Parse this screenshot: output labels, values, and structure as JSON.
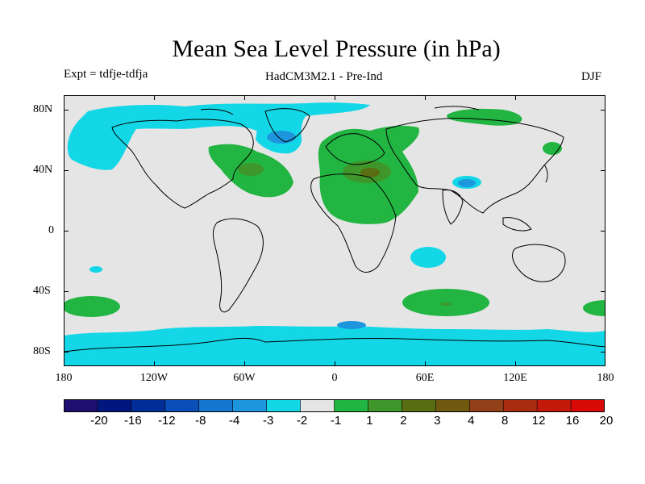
{
  "title": "Mean Sea Level Pressure (in hPa)",
  "subtitle_left": "Expt = tdfje-tdfja",
  "subtitle_center": "HadCM3M2.1 - Pre-Ind",
  "subtitle_right": "DJF",
  "y_ticks": [
    "80N",
    "40N",
    "0",
    "40S",
    "80S"
  ],
  "x_ticks": [
    "180",
    "120W",
    "60W",
    "0",
    "60E",
    "120E",
    "180"
  ],
  "colorbar": {
    "colors": [
      "#1e0e70",
      "#001780",
      "#002e98",
      "#0a4fb8",
      "#1576d0",
      "#1d96de",
      "#13d7e6",
      "#e5e5e5",
      "#22b542",
      "#3f962a",
      "#596e12",
      "#705a10",
      "#924018",
      "#a82c10",
      "#c41a0c",
      "#d80b08"
    ],
    "labels": [
      "-20",
      "-16",
      "-12",
      "-8",
      "-4",
      "-3",
      "-2",
      "-1",
      "1",
      "2",
      "3",
      "4",
      "8",
      "12",
      "16",
      "20"
    ]
  },
  "legend_colors": {
    "land_background": "#e5e5e5",
    "light_blue": "#13d7e6",
    "mid_blue": "#1d96de",
    "deep_blue": "#1576d0",
    "green": "#22b542",
    "olive": "#3f962a",
    "brown": "#596e12"
  }
}
